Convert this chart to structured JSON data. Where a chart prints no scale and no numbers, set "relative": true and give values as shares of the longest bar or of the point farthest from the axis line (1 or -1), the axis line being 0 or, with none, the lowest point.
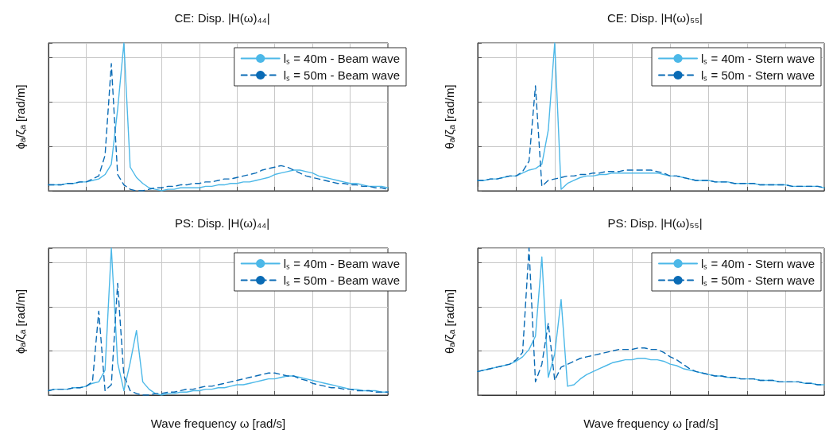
{
  "chart_data": [
    {
      "type": "line",
      "title": "CE: Disp. |H(ω)₄₄|",
      "ylabel": "ϕₐ/ζₐ [rad/m]",
      "relative": true,
      "grid": true,
      "legend": "top right",
      "categories": [
        null,
        null,
        null,
        null,
        null,
        null,
        null,
        null,
        null,
        null,
        null,
        null,
        null,
        null,
        null,
        null,
        null,
        null,
        null,
        null,
        null,
        null,
        null,
        null,
        null,
        null,
        null,
        null,
        null,
        null,
        null,
        null,
        null,
        null,
        null,
        null,
        null,
        null,
        null,
        null,
        null,
        null,
        null,
        null,
        null,
        null,
        null,
        null,
        null,
        null,
        null,
        null,
        null,
        null,
        null
      ],
      "series": [
        {
          "name": "lₛ = 40m - Beam wave",
          "color": "#4cb8e8",
          "line_style": "solid",
          "values": [
            0.04,
            0.04,
            0.04,
            0.05,
            0.05,
            0.06,
            0.06,
            0.07,
            0.08,
            0.11,
            0.18,
            0.55,
            1.0,
            0.16,
            0.09,
            0.05,
            0.02,
            0.01,
            0,
            0.01,
            0.01,
            0.02,
            0.02,
            0.02,
            0.02,
            0.03,
            0.03,
            0.04,
            0.04,
            0.05,
            0.05,
            0.06,
            0.06,
            0.07,
            0.08,
            0.09,
            0.11,
            0.12,
            0.13,
            0.14,
            0.14,
            0.13,
            0.12,
            0.1,
            0.09,
            0.08,
            0.07,
            0.06,
            0.05,
            0.05,
            0.04,
            0.03,
            0.03,
            0.03,
            0.02
          ]
        },
        {
          "name": "lₛ = 50m - Beam wave",
          "color": "#0a6bb5",
          "line_style": "dashed",
          "values": [
            0.04,
            0.04,
            0.04,
            0.05,
            0.05,
            0.06,
            0.06,
            0.08,
            0.1,
            0.24,
            0.86,
            0.11,
            0.04,
            0.01,
            0,
            0,
            0.01,
            0.02,
            0.02,
            0.03,
            0.03,
            0.04,
            0.04,
            0.05,
            0.05,
            0.06,
            0.06,
            0.07,
            0.08,
            0.08,
            0.09,
            0.1,
            0.11,
            0.12,
            0.14,
            0.15,
            0.16,
            0.17,
            0.16,
            0.14,
            0.12,
            0.1,
            0.09,
            0.08,
            0.07,
            0.06,
            0.05,
            0.05,
            0.04,
            0.04,
            0.03,
            0.03,
            0.02,
            0.02,
            0.01
          ]
        }
      ]
    },
    {
      "type": "line",
      "title": "CE: Disp. |H(ω)₅₅|",
      "ylabel": "θₐ/ζₐ [rad/m]",
      "relative": true,
      "grid": true,
      "legend": "top right",
      "categories": [
        null,
        null,
        null,
        null,
        null,
        null,
        null,
        null,
        null,
        null,
        null,
        null,
        null,
        null,
        null,
        null,
        null,
        null,
        null,
        null,
        null,
        null,
        null,
        null,
        null,
        null,
        null,
        null,
        null,
        null,
        null,
        null,
        null,
        null,
        null,
        null,
        null,
        null,
        null,
        null,
        null,
        null,
        null,
        null,
        null,
        null,
        null,
        null,
        null,
        null,
        null,
        null,
        null,
        null,
        null
      ],
      "series": [
        {
          "name": "lₛ = 40m - Stern wave",
          "color": "#4cb8e8",
          "line_style": "solid",
          "values": [
            0.07,
            0.07,
            0.08,
            0.08,
            0.09,
            0.1,
            0.1,
            0.12,
            0.14,
            0.15,
            0.18,
            0.41,
            1.0,
            0.01,
            0.05,
            0.07,
            0.09,
            0.1,
            0.1,
            0.11,
            0.11,
            0.12,
            0.12,
            0.12,
            0.12,
            0.12,
            0.12,
            0.12,
            0.12,
            0.11,
            0.1,
            0.1,
            0.09,
            0.08,
            0.07,
            0.07,
            0.07,
            0.06,
            0.06,
            0.06,
            0.05,
            0.05,
            0.05,
            0.05,
            0.04,
            0.04,
            0.04,
            0.04,
            0.04,
            0.03,
            0.03,
            0.03,
            0.03,
            0.03,
            0.02
          ]
        },
        {
          "name": "lₛ = 50m - Stern wave",
          "color": "#0a6bb5",
          "line_style": "dashed",
          "values": [
            0.07,
            0.07,
            0.08,
            0.08,
            0.09,
            0.1,
            0.1,
            0.13,
            0.2,
            0.71,
            0.03,
            0.07,
            0.08,
            0.09,
            0.1,
            0.1,
            0.11,
            0.11,
            0.12,
            0.12,
            0.13,
            0.13,
            0.13,
            0.14,
            0.14,
            0.14,
            0.14,
            0.14,
            0.13,
            0.12,
            0.1,
            0.1,
            0.09,
            0.08,
            0.07,
            0.07,
            0.07,
            0.06,
            0.06,
            0.06,
            0.05,
            0.05,
            0.05,
            0.05,
            0.04,
            0.04,
            0.04,
            0.04,
            0.04,
            0.03,
            0.03,
            0.03,
            0.03,
            0.03,
            0.02
          ]
        }
      ]
    },
    {
      "type": "line",
      "title": "PS: Disp. |H(ω)₄₄|",
      "ylabel": "ϕₐ/ζₐ [rad/m]",
      "xlabel": "Wave frequency ω [rad/s]",
      "relative": true,
      "grid": true,
      "legend": "top right",
      "categories": [
        null,
        null,
        null,
        null,
        null,
        null,
        null,
        null,
        null,
        null,
        null,
        null,
        null,
        null,
        null,
        null,
        null,
        null,
        null,
        null,
        null,
        null,
        null,
        null,
        null,
        null,
        null,
        null,
        null,
        null,
        null,
        null,
        null,
        null,
        null,
        null,
        null,
        null,
        null,
        null,
        null,
        null,
        null,
        null,
        null,
        null,
        null,
        null,
        null,
        null,
        null,
        null,
        null,
        null,
        null
      ],
      "series": [
        {
          "name": "lₛ = 40m - Beam wave",
          "color": "#4cb8e8",
          "line_style": "solid",
          "values": [
            0.03,
            0.04,
            0.04,
            0.04,
            0.05,
            0.05,
            0.06,
            0.08,
            0.09,
            0.17,
            1.0,
            0.22,
            0.03,
            0.22,
            0.44,
            0.09,
            0.04,
            0.01,
            0,
            0.01,
            0.01,
            0.02,
            0.02,
            0.03,
            0.03,
            0.04,
            0.04,
            0.05,
            0.05,
            0.06,
            0.07,
            0.07,
            0.08,
            0.09,
            0.1,
            0.11,
            0.11,
            0.12,
            0.13,
            0.13,
            0.12,
            0.11,
            0.1,
            0.09,
            0.08,
            0.07,
            0.06,
            0.05,
            0.04,
            0.04,
            0.03,
            0.03,
            0.03,
            0.02,
            0.02
          ]
        },
        {
          "name": "lₛ = 50m - Beam wave",
          "color": "#0a6bb5",
          "line_style": "dashed",
          "values": [
            0.03,
            0.04,
            0.04,
            0.04,
            0.05,
            0.05,
            0.06,
            0.09,
            0.57,
            0.03,
            0.07,
            0.76,
            0.13,
            0.03,
            0.01,
            0,
            0,
            0.01,
            0.01,
            0.02,
            0.02,
            0.03,
            0.04,
            0.04,
            0.05,
            0.06,
            0.06,
            0.07,
            0.08,
            0.09,
            0.1,
            0.11,
            0.12,
            0.13,
            0.14,
            0.15,
            0.15,
            0.14,
            0.13,
            0.13,
            0.11,
            0.1,
            0.08,
            0.07,
            0.06,
            0.05,
            0.05,
            0.04,
            0.04,
            0.03,
            0.03,
            0.03,
            0.02,
            0.02,
            0.02
          ]
        }
      ]
    },
    {
      "type": "line",
      "title": "PS: Disp. |H(ω)₅₅|",
      "ylabel": "θₐ/ζₐ [rad/m]",
      "xlabel": "Wave frequency ω [rad/s]",
      "relative": true,
      "grid": true,
      "legend": "top right",
      "categories": [
        null,
        null,
        null,
        null,
        null,
        null,
        null,
        null,
        null,
        null,
        null,
        null,
        null,
        null,
        null,
        null,
        null,
        null,
        null,
        null,
        null,
        null,
        null,
        null,
        null,
        null,
        null,
        null,
        null,
        null,
        null,
        null,
        null,
        null,
        null,
        null,
        null,
        null,
        null,
        null,
        null,
        null,
        null,
        null,
        null,
        null,
        null,
        null,
        null,
        null,
        null,
        null,
        null,
        null,
        null
      ],
      "series": [
        {
          "name": "lₛ = 40m - Stern wave",
          "color": "#4cb8e8",
          "line_style": "solid",
          "values": [
            0.16,
            0.17,
            0.18,
            0.19,
            0.2,
            0.21,
            0.23,
            0.26,
            0.31,
            0.4,
            0.94,
            0.12,
            0.28,
            0.65,
            0.06,
            0.07,
            0.11,
            0.14,
            0.16,
            0.18,
            0.2,
            0.22,
            0.23,
            0.24,
            0.24,
            0.25,
            0.25,
            0.24,
            0.24,
            0.23,
            0.21,
            0.2,
            0.18,
            0.17,
            0.16,
            0.15,
            0.14,
            0.13,
            0.13,
            0.12,
            0.12,
            0.11,
            0.11,
            0.11,
            0.1,
            0.1,
            0.1,
            0.09,
            0.09,
            0.09,
            0.09,
            0.08,
            0.08,
            0.07,
            0.07
          ]
        },
        {
          "name": "lₛ = 50m - Stern wave",
          "color": "#0a6bb5",
          "line_style": "dashed",
          "values": [
            0.16,
            0.17,
            0.18,
            0.19,
            0.2,
            0.21,
            0.24,
            0.29,
            1.0,
            0.09,
            0.21,
            0.49,
            0.1,
            0.19,
            0.21,
            0.23,
            0.25,
            0.26,
            0.27,
            0.28,
            0.29,
            0.3,
            0.31,
            0.31,
            0.31,
            0.32,
            0.32,
            0.31,
            0.31,
            0.29,
            0.26,
            0.24,
            0.21,
            0.18,
            0.16,
            0.15,
            0.14,
            0.13,
            0.13,
            0.12,
            0.12,
            0.11,
            0.11,
            0.11,
            0.1,
            0.1,
            0.1,
            0.09,
            0.09,
            0.09,
            0.09,
            0.08,
            0.08,
            0.07,
            0.07
          ]
        }
      ]
    }
  ]
}
